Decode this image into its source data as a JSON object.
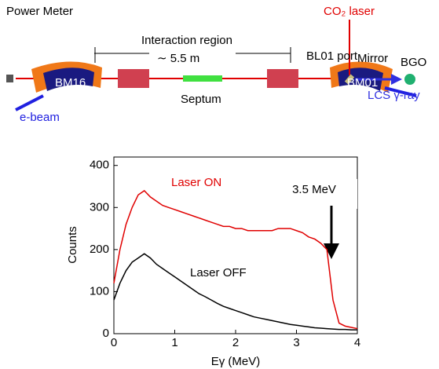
{
  "diagram": {
    "labels": {
      "power_meter": "Power Meter",
      "interaction_region": "Interaction region",
      "length": "∼ 5.5 m",
      "bl01_port": "BL01 port",
      "co2_laser": "CO₂ laser",
      "mirror": "Mirror",
      "bgo": "BGO",
      "bm16": "BM16",
      "bm01": "BM01",
      "e_beam": "e-beam",
      "septum": "Septum",
      "lcs": "LCS γ-ray"
    }
  },
  "chart_data": {
    "type": "line",
    "x_label": "Eγ (MeV)",
    "y_label": "Counts",
    "annotation": "3.5 MeV",
    "x": [
      0,
      0.1,
      0.2,
      0.3,
      0.4,
      0.5,
      0.6,
      0.7,
      0.8,
      0.9,
      1,
      1.1,
      1.2,
      1.3,
      1.4,
      1.5,
      1.6,
      1.7,
      1.8,
      1.9,
      2,
      2.1,
      2.2,
      2.3,
      2.4,
      2.5,
      2.6,
      2.7,
      2.8,
      2.9,
      3,
      3.1,
      3.2,
      3.3,
      3.4,
      3.5,
      3.6,
      3.7,
      3.8,
      3.9,
      4
    ],
    "series": [
      {
        "name": "Laser ON",
        "color": "#e00000",
        "values": [
          120,
          200,
          260,
          300,
          330,
          340,
          325,
          315,
          305,
          300,
          295,
          290,
          285,
          280,
          275,
          270,
          265,
          260,
          255,
          255,
          250,
          250,
          245,
          245,
          245,
          245,
          245,
          250,
          250,
          250,
          245,
          240,
          230,
          225,
          215,
          200,
          80,
          25,
          18,
          15,
          12
        ]
      },
      {
        "name": "Laser OFF",
        "color": "#000000",
        "values": [
          80,
          120,
          150,
          170,
          180,
          190,
          180,
          165,
          155,
          145,
          135,
          125,
          115,
          105,
          95,
          88,
          80,
          72,
          65,
          60,
          55,
          50,
          45,
          40,
          37,
          34,
          31,
          28,
          25,
          22,
          20,
          18,
          16,
          14,
          13,
          12,
          11,
          10,
          10,
          9,
          9
        ]
      }
    ],
    "xlim": [
      0,
      4
    ],
    "ylim": [
      0,
      420
    ],
    "xticks": [
      0,
      1,
      2,
      3,
      4
    ],
    "yticks": [
      0,
      100,
      200,
      300,
      400
    ]
  }
}
